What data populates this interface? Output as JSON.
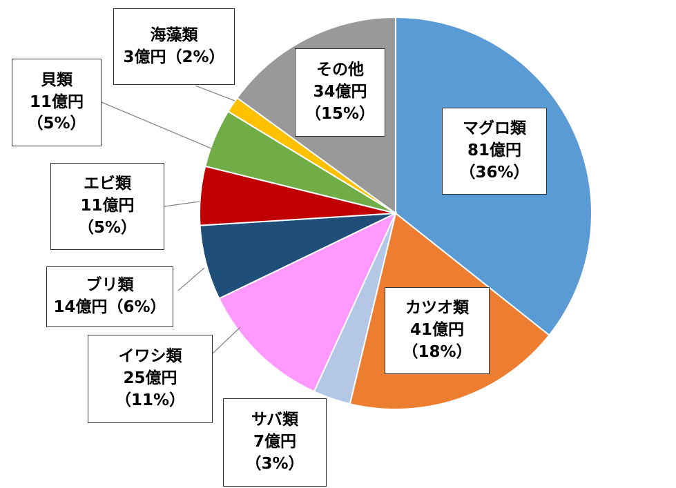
{
  "chart_data": {
    "type": "pie",
    "start": "12 o'clock, clockwise",
    "slices": [
      {
        "label": "マグロ類",
        "value_text": "81億円",
        "pct_text": "（36%）",
        "value": 81,
        "percent": 36,
        "color": "#5b9bd5"
      },
      {
        "label": "カツオ類",
        "value_text": "41億円",
        "pct_text": "（18%）",
        "value": 41,
        "percent": 18,
        "color": "#ed7d31"
      },
      {
        "label": "サバ類",
        "value_text": "7億円",
        "pct_text": "（3%）",
        "value": 7,
        "percent": 3,
        "color": "#b4c7e7"
      },
      {
        "label": "イワシ類",
        "value_text": "25億円",
        "pct_text": "（11%）",
        "value": 25,
        "percent": 11,
        "color": "#ff99ff"
      },
      {
        "label": "ブリ類",
        "value_text": "14億円",
        "pct_text": "（6%）",
        "value": 14,
        "percent": 6,
        "color": "#1f4e79"
      },
      {
        "label": "エビ類",
        "value_text": "11億円",
        "pct_text": "（5%）",
        "value": 11,
        "percent": 5,
        "color": "#c00000"
      },
      {
        "label": "貝類",
        "value_text": "11億円",
        "pct_text": "（5%）",
        "value": 11,
        "percent": 5,
        "color": "#70ad47"
      },
      {
        "label": "海藻類",
        "value_text": "3億円",
        "pct_text": "（2%）",
        "value": 3,
        "percent": 2,
        "color": "#ffc000"
      },
      {
        "label": "その他",
        "value_text": "34億円",
        "pct_text": "（15%）",
        "value": 34,
        "percent": 15,
        "color": "#999999"
      }
    ]
  }
}
